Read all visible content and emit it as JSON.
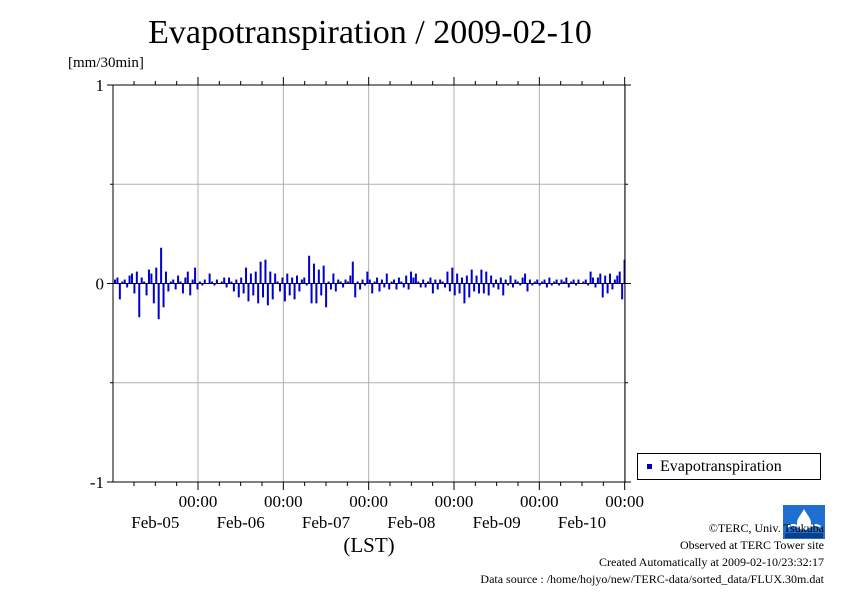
{
  "title": "Evapotranspiration / 2009-02-10",
  "unit_label": "[mm/30min]",
  "legend": {
    "label": "Evapotranspiration",
    "color": "#0000cc"
  },
  "footer": {
    "copyright": "©TERC, Univ. Tsukuba",
    "observed": "Observed at TERC Tower site",
    "created": "Created Automatically at 2009-02-10/23:32:17",
    "source": "Data source : /home/hojyo/new/TERC-data/sorted_data/FLUX.30m.dat"
  },
  "chart_data": {
    "type": "bar",
    "title": "Evapotranspiration / 2009-02-10",
    "ylabel": "[mm/30min]",
    "xlabel": "(LST)",
    "ylim": [
      -1,
      1
    ],
    "yticks": [
      "1",
      "0",
      "-1"
    ],
    "xlim_days": [
      0,
      6
    ],
    "xticks": [
      {
        "time": "00:00",
        "date": "Feb-05"
      },
      {
        "time": "00:00",
        "date": "Feb-06"
      },
      {
        "time": "00:00",
        "date": "Feb-07"
      },
      {
        "time": "00:00",
        "date": "Feb-08"
      },
      {
        "time": "00:00",
        "date": "Feb-09"
      },
      {
        "time": "00:00",
        "date": "Feb-10"
      }
    ],
    "grid": true,
    "legend_position": "right",
    "series": [
      {
        "name": "Evapotranspiration",
        "color": "#0000cc",
        "values": [
          0.02,
          0.03,
          -0.08,
          0.01,
          0.02,
          -0.02,
          0.04,
          0.05,
          -0.05,
          0.06,
          -0.17,
          0.03,
          0.01,
          -0.06,
          0.07,
          0.05,
          -0.1,
          0.08,
          -0.18,
          0.18,
          -0.12,
          0.06,
          -0.04,
          0.01,
          0.02,
          -0.03,
          0.04,
          0.01,
          -0.05,
          0.03,
          0.06,
          -0.06,
          0.02,
          0.08,
          -0.03,
          0.01,
          -0.01,
          0.02,
          0.0,
          0.05,
          0.01,
          -0.01,
          0.02,
          0.0,
          0.01,
          0.03,
          -0.02,
          0.03,
          0.01,
          -0.04,
          0.02,
          -0.07,
          0.03,
          -0.05,
          0.08,
          -0.09,
          0.05,
          -0.06,
          0.06,
          -0.1,
          0.11,
          -0.07,
          0.12,
          -0.11,
          0.06,
          -0.08,
          0.05,
          0.01,
          -0.04,
          0.03,
          -0.09,
          0.05,
          -0.06,
          0.03,
          -0.08,
          0.04,
          -0.04,
          0.02,
          0.03,
          -0.01,
          0.14,
          -0.1,
          0.1,
          -0.1,
          0.07,
          -0.06,
          0.09,
          -0.12,
          0.01,
          -0.03,
          0.05,
          -0.04,
          0.02,
          0.01,
          -0.02,
          0.02,
          0.01,
          0.04,
          0.11,
          -0.07,
          0.01,
          -0.03,
          0.02,
          -0.01,
          0.06,
          0.02,
          -0.05,
          0.01,
          0.03,
          -0.04,
          0.02,
          -0.02,
          0.05,
          -0.03,
          0.01,
          0.02,
          -0.03,
          0.03,
          0.01,
          -0.02,
          0.04,
          -0.03,
          0.06,
          0.03,
          0.05,
          0.01,
          -0.02,
          0.02,
          -0.02,
          0.01,
          0.03,
          -0.05,
          0.02,
          -0.03,
          0.02,
          0.01,
          -0.02,
          0.06,
          -0.04,
          0.08,
          -0.06,
          0.05,
          -0.05,
          0.03,
          -0.1,
          0.04,
          -0.07,
          0.07,
          -0.04,
          0.04,
          -0.05,
          0.07,
          -0.05,
          0.06,
          -0.06,
          0.04,
          -0.02,
          0.02,
          -0.03,
          0.03,
          -0.06,
          0.02,
          -0.01,
          0.04,
          -0.02,
          0.02,
          0.01,
          -0.01,
          0.03,
          0.05,
          -0.04,
          0.02,
          -0.01,
          0.01,
          0.02,
          -0.01,
          0.01,
          0.02,
          -0.02,
          0.03,
          -0.01,
          0.01,
          0.02,
          -0.01,
          0.02,
          0.01,
          0.03,
          -0.02,
          0.01,
          0.02,
          -0.01,
          0.02,
          0.0,
          0.01,
          0.02,
          -0.01,
          0.06,
          0.03,
          -0.02,
          0.03,
          0.05,
          -0.07,
          0.04,
          -0.05,
          0.05,
          -0.03,
          0.02,
          0.04,
          0.06,
          -0.08,
          0.12
        ]
      }
    ]
  }
}
